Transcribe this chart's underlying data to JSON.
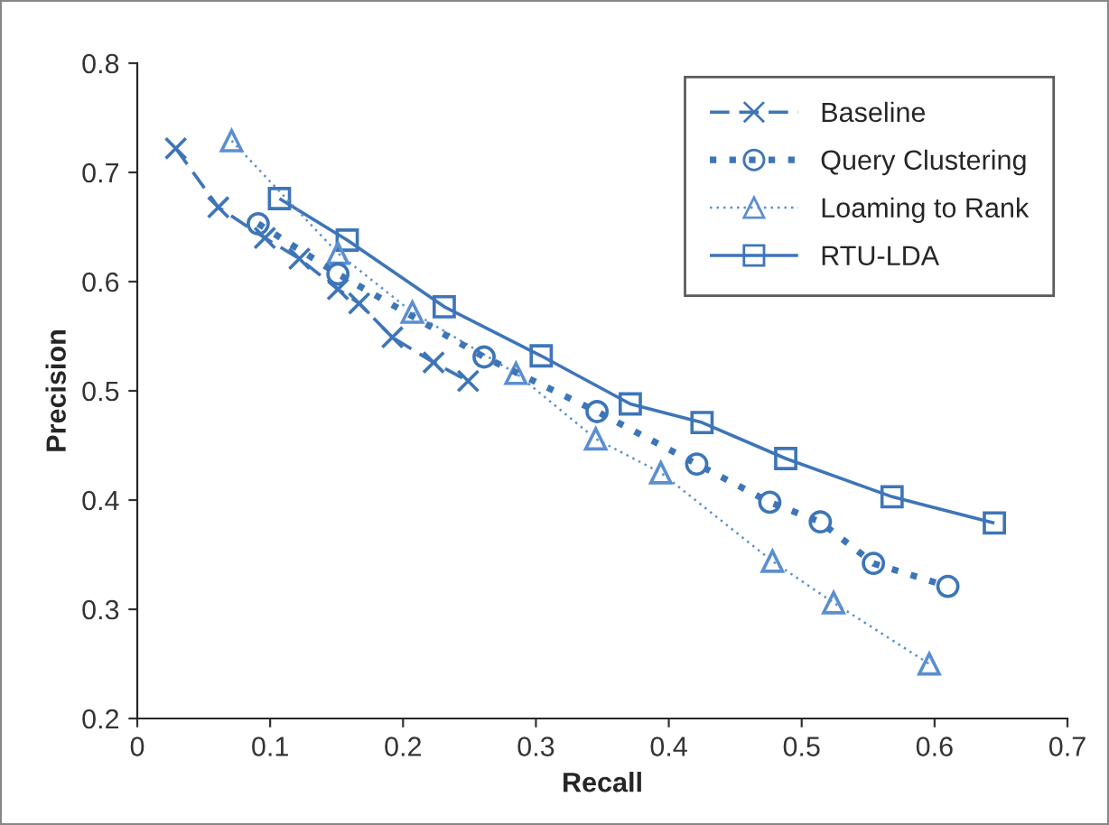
{
  "chart_data": {
    "type": "line",
    "xlabel": "Recall",
    "ylabel": "Precision",
    "xlim": [
      0,
      0.7
    ],
    "xticks": [
      0,
      0.1,
      0.2,
      0.3,
      0.4,
      0.5,
      0.6,
      0.7
    ],
    "ylim": [
      0.2,
      0.8
    ],
    "yticks": [
      0.2,
      0.3,
      0.4,
      0.5,
      0.6,
      0.7,
      0.8
    ],
    "grid": false,
    "legend": "top right",
    "series": [
      {
        "name": "Baseline",
        "color": "#3d75b8",
        "marker": "cross",
        "line_style": "dashed",
        "x": [
          0.029,
          0.061,
          0.096,
          0.122,
          0.151,
          0.167,
          0.192,
          0.223,
          0.249
        ],
        "values": [
          0.722,
          0.668,
          0.64,
          0.621,
          0.593,
          0.58,
          0.549,
          0.526,
          0.509
        ]
      },
      {
        "name": "Query Clustering",
        "color": "#3d75b8",
        "marker": "circle",
        "line_style": "dotted",
        "x": [
          0.091,
          0.151,
          0.261,
          0.346,
          0.421,
          0.476,
          0.514,
          0.554,
          0.61
        ],
        "values": [
          0.653,
          0.607,
          0.531,
          0.481,
          0.433,
          0.398,
          0.38,
          0.342,
          0.321
        ]
      },
      {
        "name": "Loaming to Rank",
        "color": "#5b8fd0",
        "marker": "triangle",
        "line_style": "dotted",
        "x": [
          0.071,
          0.151,
          0.207,
          0.285,
          0.345,
          0.394,
          0.478,
          0.524,
          0.596
        ],
        "values": [
          0.729,
          0.626,
          0.572,
          0.516,
          0.456,
          0.425,
          0.344,
          0.306,
          0.25
        ]
      },
      {
        "name": "RTU-LDA",
        "color": "#3d75b8",
        "marker": "square",
        "line_style": "solid",
        "x": [
          0.107,
          0.158,
          0.231,
          0.304,
          0.371,
          0.425,
          0.488,
          0.568,
          0.645
        ],
        "values": [
          0.676,
          0.638,
          0.577,
          0.532,
          0.488,
          0.471,
          0.438,
          0.403,
          0.379
        ]
      }
    ]
  }
}
